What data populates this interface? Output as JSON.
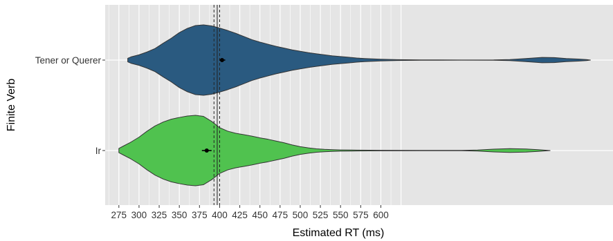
{
  "chart_data": {
    "type": "violin",
    "orientation": "horizontal",
    "xlabel": "Estimated RT (ms)",
    "ylabel": "Finite Verb",
    "xlim": [
      258,
      888
    ],
    "x_ticks": [
      275,
      300,
      325,
      350,
      375,
      400,
      425,
      450,
      475,
      500,
      525,
      550,
      575,
      600
    ],
    "minor_grid_until": 625,
    "grid": true,
    "vlines": [
      {
        "x": 393,
        "style": "dashed"
      },
      {
        "x": 397,
        "style": "solid"
      },
      {
        "x": 400,
        "style": "dashed"
      }
    ],
    "categories": [
      "Tener or Querer",
      "Ir"
    ],
    "series": [
      {
        "category": "Tener or Querer",
        "color": "#2a5a80",
        "mean": 403,
        "error": [
          400,
          407
        ],
        "density": [
          [
            286,
            0.05
          ],
          [
            290,
            0.09
          ],
          [
            300,
            0.15
          ],
          [
            310,
            0.23
          ],
          [
            320,
            0.33
          ],
          [
            330,
            0.48
          ],
          [
            340,
            0.62
          ],
          [
            350,
            0.78
          ],
          [
            360,
            0.9
          ],
          [
            370,
            0.98
          ],
          [
            380,
            1.0
          ],
          [
            390,
            0.97
          ],
          [
            400,
            0.91
          ],
          [
            410,
            0.84
          ],
          [
            420,
            0.76
          ],
          [
            430,
            0.67
          ],
          [
            440,
            0.58
          ],
          [
            450,
            0.51
          ],
          [
            460,
            0.45
          ],
          [
            470,
            0.39
          ],
          [
            480,
            0.34
          ],
          [
            490,
            0.29
          ],
          [
            500,
            0.25
          ],
          [
            510,
            0.21
          ],
          [
            520,
            0.18
          ],
          [
            530,
            0.15
          ],
          [
            540,
            0.12
          ],
          [
            550,
            0.1
          ],
          [
            560,
            0.08
          ],
          [
            570,
            0.06
          ],
          [
            580,
            0.045
          ],
          [
            590,
            0.035
          ],
          [
            600,
            0.025
          ],
          [
            620,
            0.012
          ],
          [
            650,
            0.005
          ],
          [
            700,
            0.003
          ],
          [
            740,
            0.004
          ],
          [
            760,
            0.015
          ],
          [
            780,
            0.045
          ],
          [
            800,
            0.075
          ],
          [
            815,
            0.07
          ],
          [
            830,
            0.045
          ],
          [
            845,
            0.03
          ],
          [
            855,
            0.015
          ],
          [
            860,
            0.0
          ]
        ]
      },
      {
        "category": "Ir",
        "color": "#50c24f",
        "mean": 384,
        "error": [
          378,
          390
        ],
        "density": [
          [
            275,
            0.06
          ],
          [
            280,
            0.12
          ],
          [
            290,
            0.24
          ],
          [
            300,
            0.38
          ],
          [
            310,
            0.55
          ],
          [
            320,
            0.7
          ],
          [
            330,
            0.81
          ],
          [
            340,
            0.89
          ],
          [
            350,
            0.94
          ],
          [
            360,
            0.98
          ],
          [
            370,
            1.0
          ],
          [
            380,
            0.97
          ],
          [
            390,
            0.83
          ],
          [
            400,
            0.65
          ],
          [
            410,
            0.55
          ],
          [
            420,
            0.49
          ],
          [
            430,
            0.45
          ],
          [
            440,
            0.41
          ],
          [
            450,
            0.36
          ],
          [
            460,
            0.32
          ],
          [
            470,
            0.27
          ],
          [
            480,
            0.22
          ],
          [
            490,
            0.16
          ],
          [
            500,
            0.11
          ],
          [
            510,
            0.075
          ],
          [
            520,
            0.05
          ],
          [
            530,
            0.035
          ],
          [
            540,
            0.025
          ],
          [
            550,
            0.018
          ],
          [
            570,
            0.012
          ],
          [
            600,
            0.008
          ],
          [
            650,
            0.005
          ],
          [
            700,
            0.006
          ],
          [
            720,
            0.015
          ],
          [
            740,
            0.04
          ],
          [
            760,
            0.055
          ],
          [
            780,
            0.045
          ],
          [
            795,
            0.025
          ],
          [
            810,
            0.0
          ]
        ]
      }
    ]
  }
}
